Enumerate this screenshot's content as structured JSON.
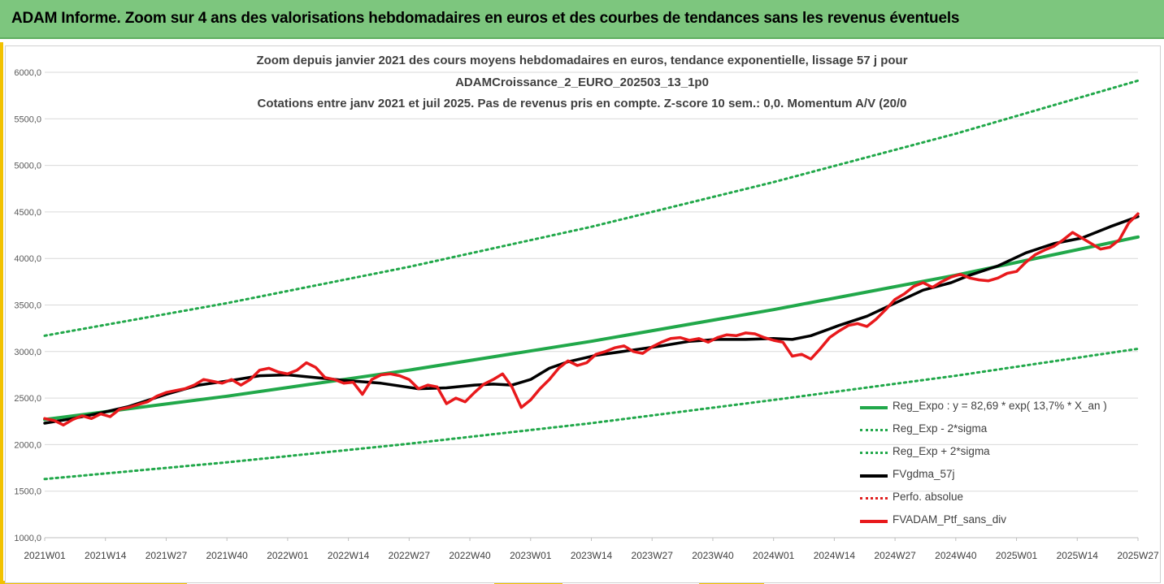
{
  "header": {
    "title": "ADAM Informe. Zoom sur 4 ans des valorisations hebdomadaires en euros et des courbes de tendances sans les revenus éventuels"
  },
  "chart_data": {
    "type": "line",
    "title_lines": [
      "Zoom depuis janvier 2021 des cours moyens hebdomadaires  en euros, tendance exponentielle, lissage 57 j pour",
      "ADAMCroissance_2_EURO_202503_13_1p0",
      "Cotations entre janv 2021 et juil 2025. Pas de revenus pris en compte. Z-score 10 sem.: 0,0. Momentum A/V (20/0"
    ],
    "x_tick_labels": [
      "2021W01",
      "2021W14",
      "2021W27",
      "2021W40",
      "2022W01",
      "2022W14",
      "2022W27",
      "2022W40",
      "2023W01",
      "2023W14",
      "2023W27",
      "2023W40",
      "2024W01",
      "2024W14",
      "2024W27",
      "2024W40",
      "2025W01",
      "2025W14",
      "2025W27"
    ],
    "y_tick_labels": [
      "1000,0",
      "1500,0",
      "2000,0",
      "2500,0",
      "3000,0",
      "3500,0",
      "4000,0",
      "4500,0",
      "5000,0",
      "5500,0",
      "6000,0"
    ],
    "ylim": [
      1000,
      6000
    ],
    "xlim": [
      0,
      234
    ],
    "grid": "horizontal",
    "legend_position": "bottom-right",
    "series": [
      {
        "name": "Reg_Expo : y = 82,69 * exp( 13,7% *  X_an )",
        "color": "#21a84a",
        "style": "solid",
        "width": 4,
        "x": [
          0,
          39,
          78,
          117,
          156,
          195,
          234
        ],
        "values": [
          2270,
          2520,
          2800,
          3110,
          3450,
          3820,
          4230
        ]
      },
      {
        "name": "Reg_Exp - 2*sigma",
        "color": "#21a84a",
        "style": "dotted",
        "width": 3,
        "x": [
          0,
          39,
          78,
          117,
          156,
          195,
          234
        ],
        "values": [
          1630,
          1810,
          2010,
          2230,
          2480,
          2740,
          3030
        ]
      },
      {
        "name": "Reg_Exp + 2*sigma",
        "color": "#21a84a",
        "style": "dotted",
        "width": 3,
        "x": [
          0,
          39,
          78,
          117,
          156,
          195,
          234
        ],
        "values": [
          3170,
          3520,
          3910,
          4340,
          4820,
          5340,
          5910
        ]
      },
      {
        "name": "FVgdma_57j",
        "color": "#000000",
        "style": "solid",
        "width": 3.5,
        "x": [
          0,
          6,
          12,
          18,
          26,
          33,
          40,
          46,
          52,
          58,
          64,
          72,
          80,
          86,
          92,
          96,
          100,
          104,
          108,
          112,
          118,
          125,
          132,
          138,
          144,
          150,
          156,
          160,
          164,
          170,
          176,
          182,
          188,
          194,
          198,
          204,
          210,
          216,
          222,
          228,
          234
        ],
        "values": [
          2230,
          2280,
          2340,
          2410,
          2540,
          2640,
          2690,
          2740,
          2750,
          2720,
          2690,
          2660,
          2600,
          2610,
          2640,
          2650,
          2640,
          2700,
          2820,
          2890,
          2960,
          3010,
          3060,
          3110,
          3130,
          3130,
          3140,
          3130,
          3170,
          3280,
          3380,
          3520,
          3660,
          3740,
          3820,
          3920,
          4060,
          4160,
          4220,
          4340,
          4450
        ]
      },
      {
        "name": "Perfo. absolue",
        "color": "#e02020",
        "style": "dotted",
        "width": 3,
        "x": [],
        "values": []
      },
      {
        "name": "FVADAM_Ptf_sans_div",
        "color": "#e8191c",
        "style": "solid",
        "width": 3.5,
        "x": [
          0,
          2,
          4,
          6,
          8,
          10,
          12,
          14,
          16,
          18,
          20,
          22,
          24,
          26,
          28,
          30,
          32,
          34,
          36,
          38,
          40,
          42,
          44,
          46,
          48,
          50,
          52,
          54,
          56,
          58,
          60,
          62,
          64,
          66,
          68,
          70,
          72,
          74,
          76,
          78,
          80,
          82,
          84,
          86,
          88,
          90,
          92,
          94,
          96,
          98,
          100,
          102,
          104,
          106,
          108,
          110,
          112,
          114,
          116,
          118,
          120,
          122,
          124,
          126,
          128,
          130,
          132,
          134,
          136,
          138,
          140,
          142,
          144,
          146,
          148,
          150,
          152,
          154,
          156,
          158,
          160,
          162,
          164,
          166,
          168,
          170,
          172,
          174,
          176,
          178,
          180,
          182,
          184,
          186,
          188,
          190,
          192,
          194,
          196,
          198,
          200,
          202,
          204,
          206,
          208,
          210,
          212,
          214,
          216,
          218,
          220,
          222,
          224,
          226,
          228,
          230,
          232,
          234
        ],
        "values": [
          2280,
          2260,
          2210,
          2270,
          2310,
          2280,
          2330,
          2300,
          2380,
          2400,
          2430,
          2460,
          2520,
          2560,
          2580,
          2600,
          2640,
          2700,
          2680,
          2660,
          2700,
          2640,
          2700,
          2800,
          2820,
          2780,
          2760,
          2800,
          2880,
          2830,
          2720,
          2700,
          2660,
          2670,
          2540,
          2700,
          2750,
          2760,
          2740,
          2700,
          2600,
          2640,
          2620,
          2440,
          2500,
          2460,
          2560,
          2650,
          2700,
          2760,
          2620,
          2400,
          2480,
          2600,
          2700,
          2820,
          2900,
          2850,
          2880,
          2970,
          3000,
          3040,
          3060,
          3000,
          2980,
          3050,
          3100,
          3140,
          3150,
          3120,
          3140,
          3100,
          3150,
          3180,
          3170,
          3200,
          3190,
          3150,
          3120,
          3100,
          2950,
          2970,
          2920,
          3030,
          3150,
          3220,
          3280,
          3300,
          3270,
          3350,
          3450,
          3560,
          3620,
          3700,
          3740,
          3690,
          3750,
          3800,
          3830,
          3790,
          3770,
          3760,
          3790,
          3840,
          3860,
          3960,
          4040,
          4090,
          4130,
          4200,
          4280,
          4220,
          4160,
          4100,
          4120,
          4200,
          4380,
          4480
        ]
      }
    ]
  }
}
